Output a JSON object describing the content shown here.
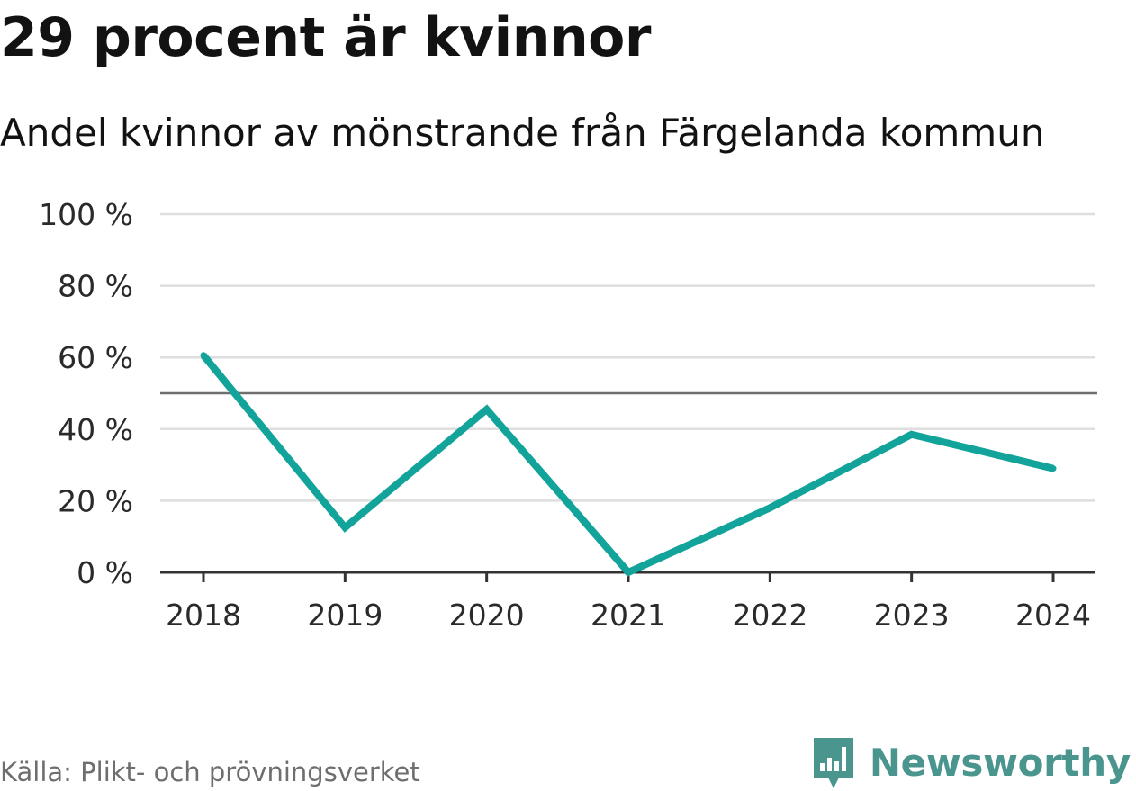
{
  "header": {
    "title": "29 procent är kvinnor",
    "subtitle": "Andel kvinnor av mönstrande från Färgelanda kommun"
  },
  "footer": {
    "source": "Källa: Plikt- och prövningsverket",
    "brand_name": "Newsworthy",
    "brand_icon": "newsworthy-logo-icon"
  },
  "colors": {
    "series": "#12a39a",
    "reference_line": "#6e6e6e",
    "grid": "#dedede",
    "axis": "#333333",
    "brand": "#4a958e"
  },
  "chart_data": {
    "type": "line",
    "title": "29 procent är kvinnor",
    "subtitle": "Andel kvinnor av mönstrande från Färgelanda kommun",
    "xlabel": "",
    "ylabel": "",
    "categories": [
      "2018",
      "2019",
      "2020",
      "2021",
      "2022",
      "2023",
      "2024"
    ],
    "series": [
      {
        "name": "Andel kvinnor",
        "values": [
          60.6,
          12.5,
          45.5,
          0,
          18,
          38.5,
          29
        ]
      }
    ],
    "ylim": [
      0,
      100
    ],
    "yticks": [
      0,
      20,
      40,
      60,
      80,
      100
    ],
    "ytick_labels": [
      "0 %",
      "20 %",
      "40 %",
      "60 %",
      "80 %",
      "100 %"
    ],
    "reference_line": 50,
    "grid": true,
    "legend": "none"
  }
}
